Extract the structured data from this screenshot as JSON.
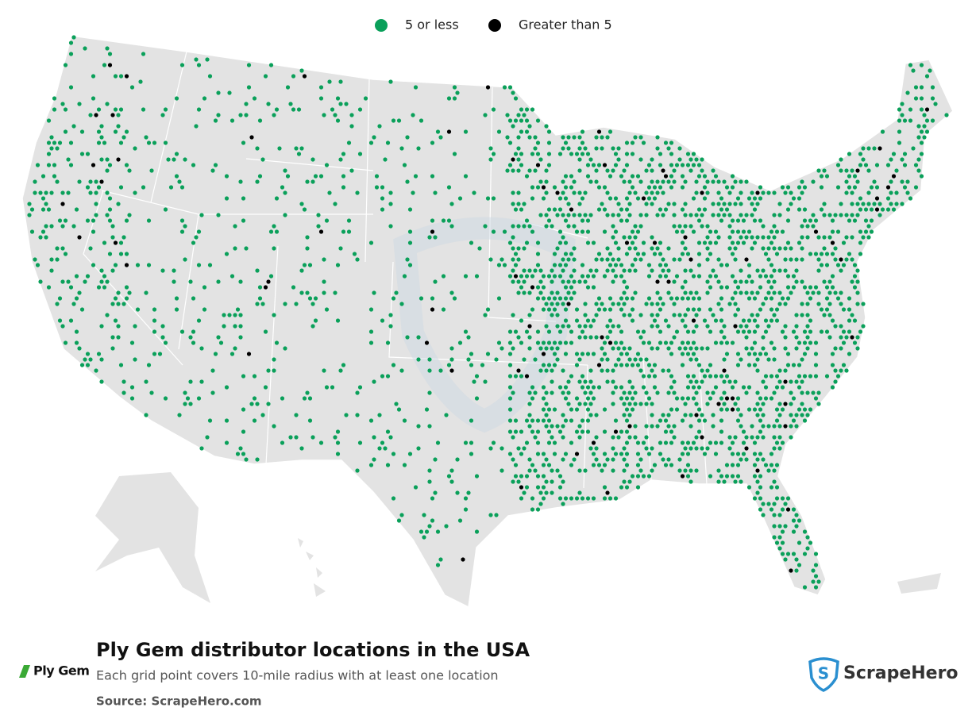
{
  "legend": [
    {
      "label": "5 or less",
      "color": "#0aa05a"
    },
    {
      "label": "Greater than 5",
      "color": "#000000"
    }
  ],
  "title": "Ply Gem distributor locations in the USA",
  "subtitle": "Each grid point covers 10-mile radius with at least one location",
  "source": "Source: ScrapeHero.com",
  "brand_logo": "Ply Gem",
  "footer_logo": "ScrapeHero"
}
